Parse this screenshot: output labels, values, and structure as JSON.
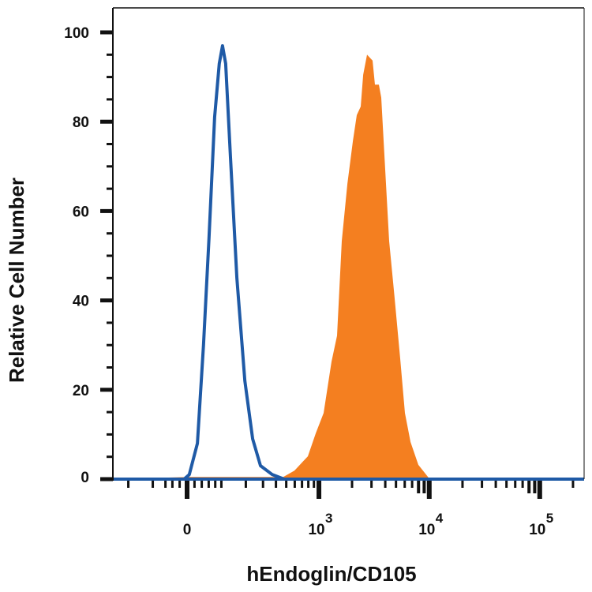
{
  "chart_data": {
    "type": "area",
    "title": "",
    "xlabel": "hEndoglin/CD105",
    "ylabel": "Relative Cell Number",
    "x_scale": "biexponential",
    "xlim": [
      -290,
      250000
    ],
    "ylim": [
      0,
      100
    ],
    "grid": false,
    "legend": "none",
    "x_ticks": [
      {
        "value": 0,
        "base": "0",
        "exp": ""
      },
      {
        "value": 1000,
        "base": "10",
        "exp": "3"
      },
      {
        "value": 10000,
        "base": "10",
        "exp": "4"
      },
      {
        "value": 100000,
        "base": "10",
        "exp": "5"
      }
    ],
    "y_ticks": [
      "0",
      "20",
      "40",
      "60",
      "80",
      "100"
    ],
    "y_tick_values": [
      0,
      20,
      40,
      60,
      80,
      100
    ],
    "series": [
      {
        "style": "filled",
        "color": "#f47f20",
        "x": [
          -290,
          6,
          369,
          455,
          596,
          792,
          936,
          1104,
          1302,
          1462,
          1615,
          1813,
          2035,
          2208,
          2398,
          2521,
          2736,
          3070,
          3224,
          3501,
          3680,
          3925,
          4337,
          4865,
          5457,
          6023,
          6770,
          7966,
          9871,
          250000
        ],
        "y": [
          0,
          0.5,
          0.5,
          0.3,
          1.9,
          5.1,
          10.3,
          14.8,
          26.3,
          32.1,
          53.3,
          66.1,
          75.7,
          81.5,
          83.4,
          90.5,
          95,
          93.7,
          88.3,
          88.3,
          85.4,
          72.5,
          53.3,
          40.4,
          27,
          14.8,
          8.3,
          3.2,
          0.3,
          0
        ]
      },
      {
        "style": "outline",
        "color": "#1f5aa6",
        "x": [
          -290,
          -8,
          6,
          28,
          45,
          61,
          78,
          93,
          104,
          115,
          133,
          159,
          195,
          236,
          283,
          369,
          478,
          250000
        ],
        "y": [
          0,
          0,
          1,
          8,
          30,
          54,
          81,
          93,
          97,
          93,
          72,
          45,
          22,
          9,
          3,
          1,
          0,
          0
        ]
      }
    ]
  }
}
